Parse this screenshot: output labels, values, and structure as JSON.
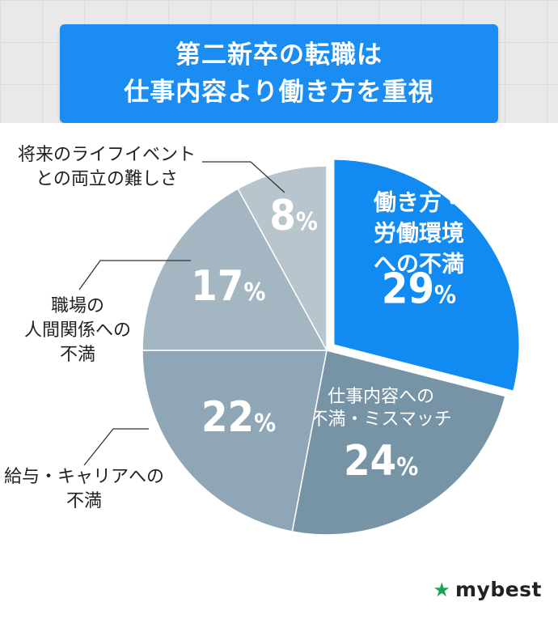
{
  "title": {
    "line1": "第二新卒の転職は",
    "line2": "仕事内容より働き方を重視"
  },
  "brand": {
    "name": "mybest",
    "icon": "star-icon",
    "color": "#1aa351"
  },
  "chart_data": {
    "type": "pie",
    "title": "第二新卒の転職は仕事内容より働き方を重視",
    "start_angle_deg": 0,
    "direction": "clockwise",
    "slices": [
      {
        "label_lines": [
          "働き方・",
          "労働環境",
          "への不満"
        ],
        "value": 29,
        "display": "29",
        "unit": "%",
        "color": "#118af2",
        "exploded": true,
        "label_inside": true,
        "text_color": "#ffffff"
      },
      {
        "label_lines": [
          "仕事内容への",
          "不満・ミスマッチ"
        ],
        "value": 24,
        "display": "24",
        "unit": "%",
        "color": "#7694a6",
        "exploded": false,
        "label_inside": true,
        "text_color": "#ffffff"
      },
      {
        "label_lines": [
          "給与・キャリアへの",
          "不満"
        ],
        "value": 22,
        "display": "22",
        "unit": "%",
        "color": "#8ea6b5",
        "exploded": false,
        "label_inside": false,
        "text_color": "#ffffff"
      },
      {
        "label_lines": [
          "職場の",
          "人間関係への",
          "不満"
        ],
        "value": 17,
        "display": "17",
        "unit": "%",
        "color": "#a3b6c2",
        "exploded": false,
        "label_inside": false,
        "text_color": "#ffffff"
      },
      {
        "label_lines": [
          "将来のライフイベント",
          "との両立の難しさ"
        ],
        "value": 8,
        "display": "8",
        "unit": "%",
        "color": "#b9c5cc",
        "exploded": false,
        "label_inside": false,
        "text_color": "#ffffff"
      }
    ]
  }
}
